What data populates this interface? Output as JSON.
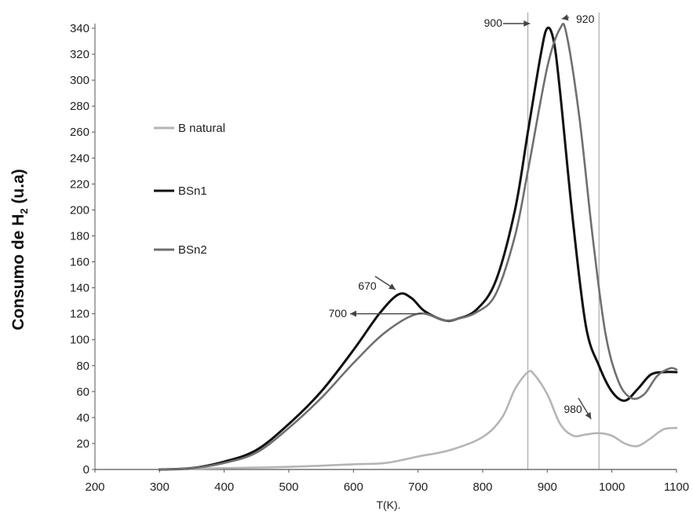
{
  "chart_data": {
    "type": "line",
    "title": "",
    "xlabel": "T(K).",
    "ylabel_main": "Consumo de H",
    "ylabel_sub": "2",
    "ylabel_tail": " (u.a)",
    "xlim": [
      200,
      1100
    ],
    "ylim": [
      0,
      340
    ],
    "x_ticks": [
      200,
      300,
      400,
      500,
      600,
      700,
      800,
      900,
      1000,
      1100
    ],
    "y_ticks": [
      0,
      20,
      40,
      60,
      80,
      100,
      120,
      140,
      160,
      180,
      200,
      220,
      240,
      260,
      280,
      300,
      320,
      340
    ],
    "grid": false,
    "legend_position": "left",
    "series": [
      {
        "name": "B natural",
        "color": "#b5b5b5",
        "points": [
          [
            300,
            0
          ],
          [
            400,
            1
          ],
          [
            500,
            2
          ],
          [
            600,
            4
          ],
          [
            650,
            5
          ],
          [
            700,
            10
          ],
          [
            750,
            15
          ],
          [
            800,
            25
          ],
          [
            830,
            40
          ],
          [
            850,
            62
          ],
          [
            870,
            75
          ],
          [
            880,
            73
          ],
          [
            900,
            58
          ],
          [
            920,
            35
          ],
          [
            940,
            26
          ],
          [
            960,
            27
          ],
          [
            980,
            28
          ],
          [
            1000,
            26
          ],
          [
            1020,
            20
          ],
          [
            1040,
            18
          ],
          [
            1060,
            24
          ],
          [
            1080,
            31
          ],
          [
            1100,
            32
          ]
        ]
      },
      {
        "name": "BSn1",
        "color": "#111111",
        "points": [
          [
            300,
            0
          ],
          [
            350,
            1
          ],
          [
            400,
            6
          ],
          [
            450,
            15
          ],
          [
            500,
            35
          ],
          [
            550,
            60
          ],
          [
            600,
            92
          ],
          [
            640,
            120
          ],
          [
            670,
            135
          ],
          [
            690,
            132
          ],
          [
            710,
            122
          ],
          [
            740,
            115
          ],
          [
            760,
            116
          ],
          [
            790,
            123
          ],
          [
            820,
            145
          ],
          [
            850,
            200
          ],
          [
            870,
            260
          ],
          [
            890,
            320
          ],
          [
            900,
            340
          ],
          [
            910,
            330
          ],
          [
            920,
            290
          ],
          [
            940,
            190
          ],
          [
            960,
            110
          ],
          [
            980,
            80
          ],
          [
            1000,
            60
          ],
          [
            1020,
            53
          ],
          [
            1040,
            62
          ],
          [
            1060,
            73
          ],
          [
            1080,
            75
          ],
          [
            1100,
            75
          ]
        ]
      },
      {
        "name": "BSn2",
        "color": "#6f6f6f",
        "points": [
          [
            300,
            0
          ],
          [
            350,
            1
          ],
          [
            400,
            5
          ],
          [
            450,
            13
          ],
          [
            500,
            32
          ],
          [
            550,
            55
          ],
          [
            600,
            82
          ],
          [
            650,
            106
          ],
          [
            700,
            120
          ],
          [
            740,
            115
          ],
          [
            760,
            116
          ],
          [
            790,
            121
          ],
          [
            820,
            135
          ],
          [
            850,
            180
          ],
          [
            870,
            230
          ],
          [
            900,
            310
          ],
          [
            920,
            340
          ],
          [
            930,
            335
          ],
          [
            950,
            270
          ],
          [
            970,
            180
          ],
          [
            990,
            105
          ],
          [
            1010,
            68
          ],
          [
            1030,
            55
          ],
          [
            1050,
            58
          ],
          [
            1070,
            72
          ],
          [
            1090,
            78
          ],
          [
            1100,
            77
          ]
        ]
      }
    ],
    "annotations": [
      {
        "text": "900",
        "x": 900,
        "y": 340
      },
      {
        "text": "920",
        "x": 920,
        "y": 340
      },
      {
        "text": "670",
        "x": 670,
        "y": 135
      },
      {
        "text": "700",
        "x": 700,
        "y": 120
      },
      {
        "text": "980",
        "x": 980,
        "y": 28
      }
    ],
    "reference_lines_x": [
      870,
      980
    ]
  }
}
